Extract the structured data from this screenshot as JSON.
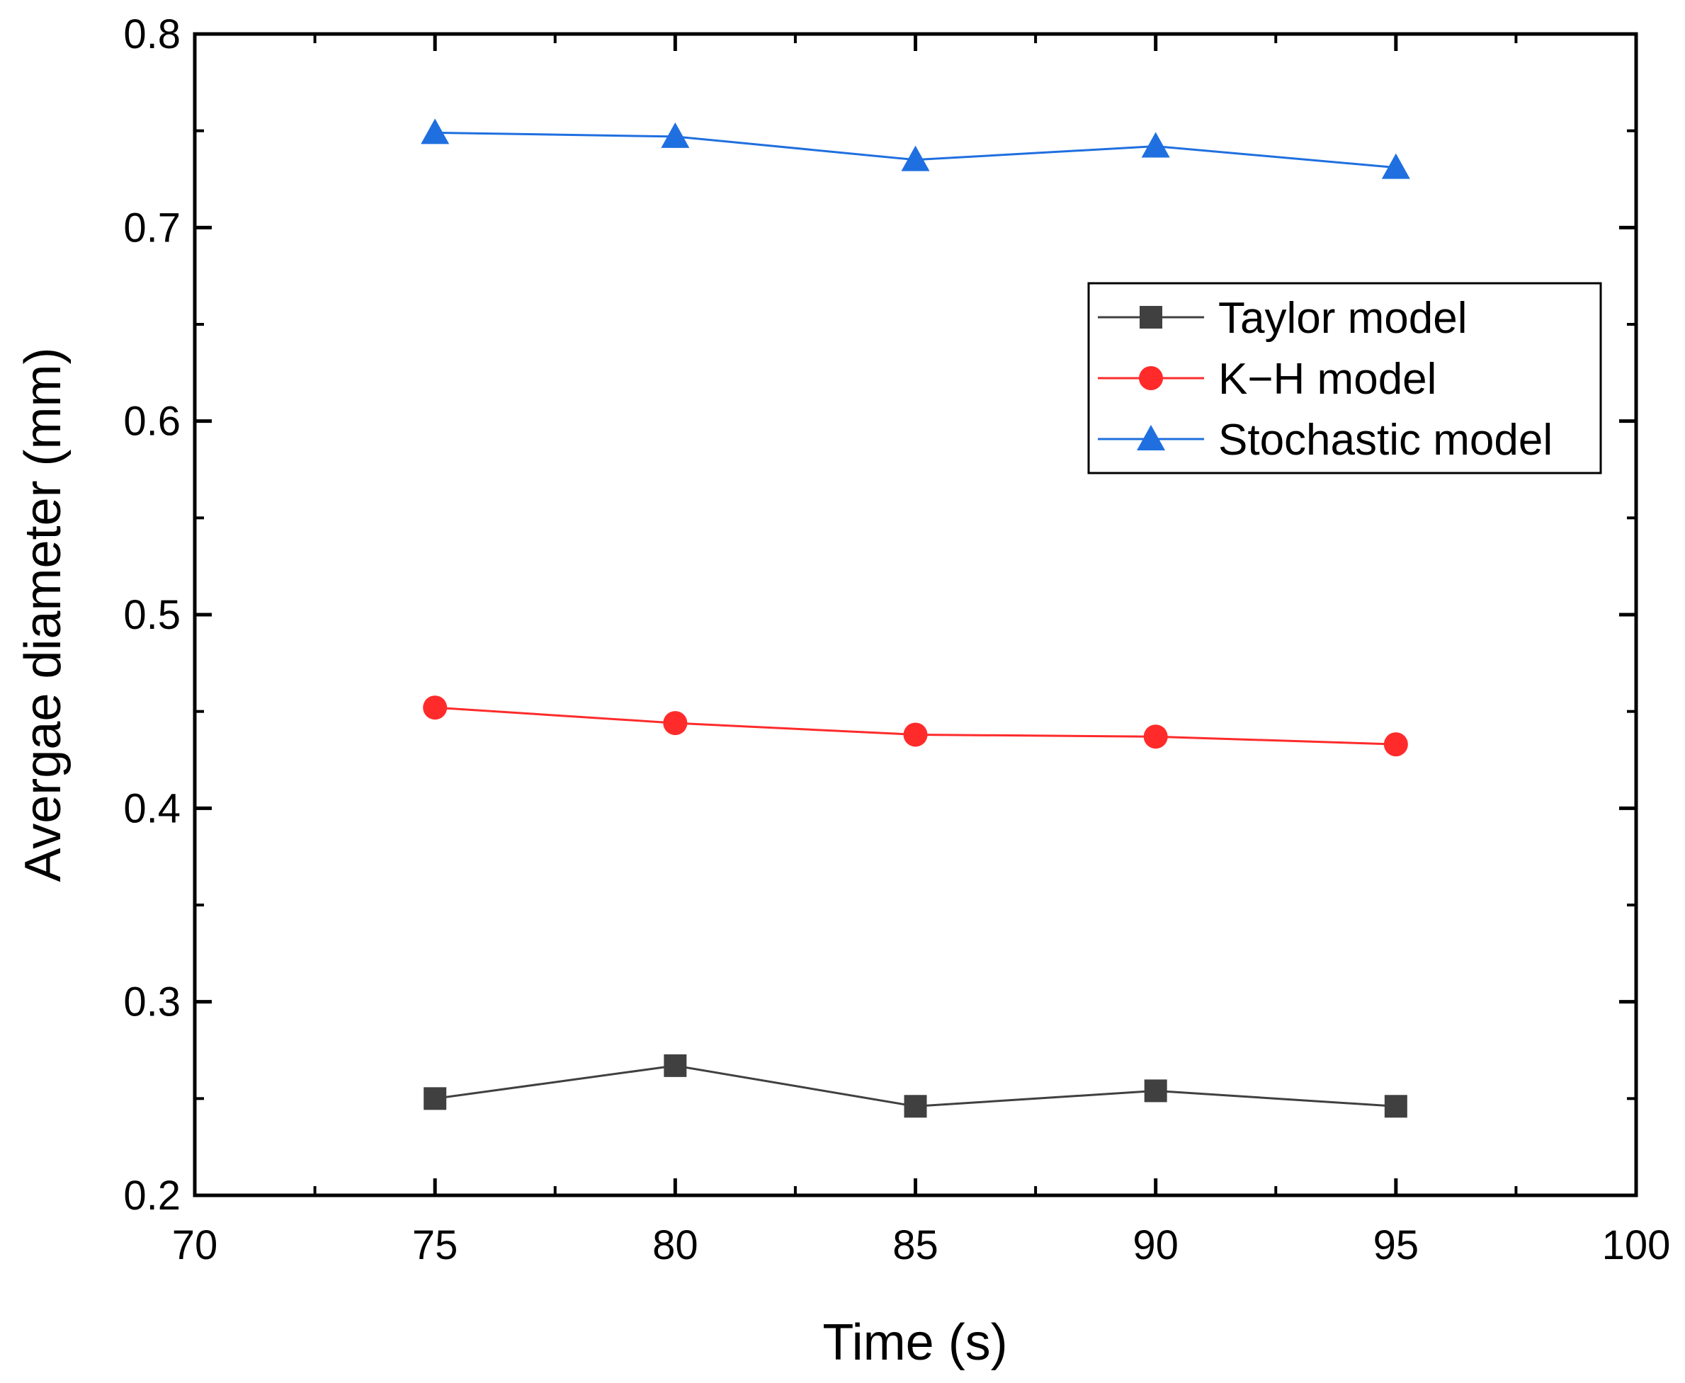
{
  "chart_data": {
    "type": "line",
    "title": "",
    "xlabel": "Time (s)",
    "ylabel": "Avergae diameter (mm)",
    "xlim": [
      70,
      100
    ],
    "ylim": [
      0.2,
      0.8
    ],
    "xticks": [
      "70",
      "75",
      "80",
      "85",
      "90",
      "95",
      "100"
    ],
    "yticks": [
      "0.2",
      "0.3",
      "0.4",
      "0.5",
      "0.6",
      "0.7",
      "0.8"
    ],
    "x": [
      75,
      80,
      85,
      90,
      95
    ],
    "grid": false,
    "legend_position": "top-right",
    "series": [
      {
        "name": "Taylor model",
        "values": [
          0.25,
          0.267,
          0.246,
          0.254,
          0.246
        ],
        "color": "#404040",
        "marker": "square"
      },
      {
        "name": "K−H model",
        "values": [
          0.452,
          0.444,
          0.438,
          0.437,
          0.433
        ],
        "color": "#ff2b2b",
        "marker": "circle"
      },
      {
        "name": "Stochastic model",
        "values": [
          0.749,
          0.747,
          0.735,
          0.742,
          0.731
        ],
        "color": "#1f6fe0",
        "marker": "triangle"
      }
    ]
  }
}
